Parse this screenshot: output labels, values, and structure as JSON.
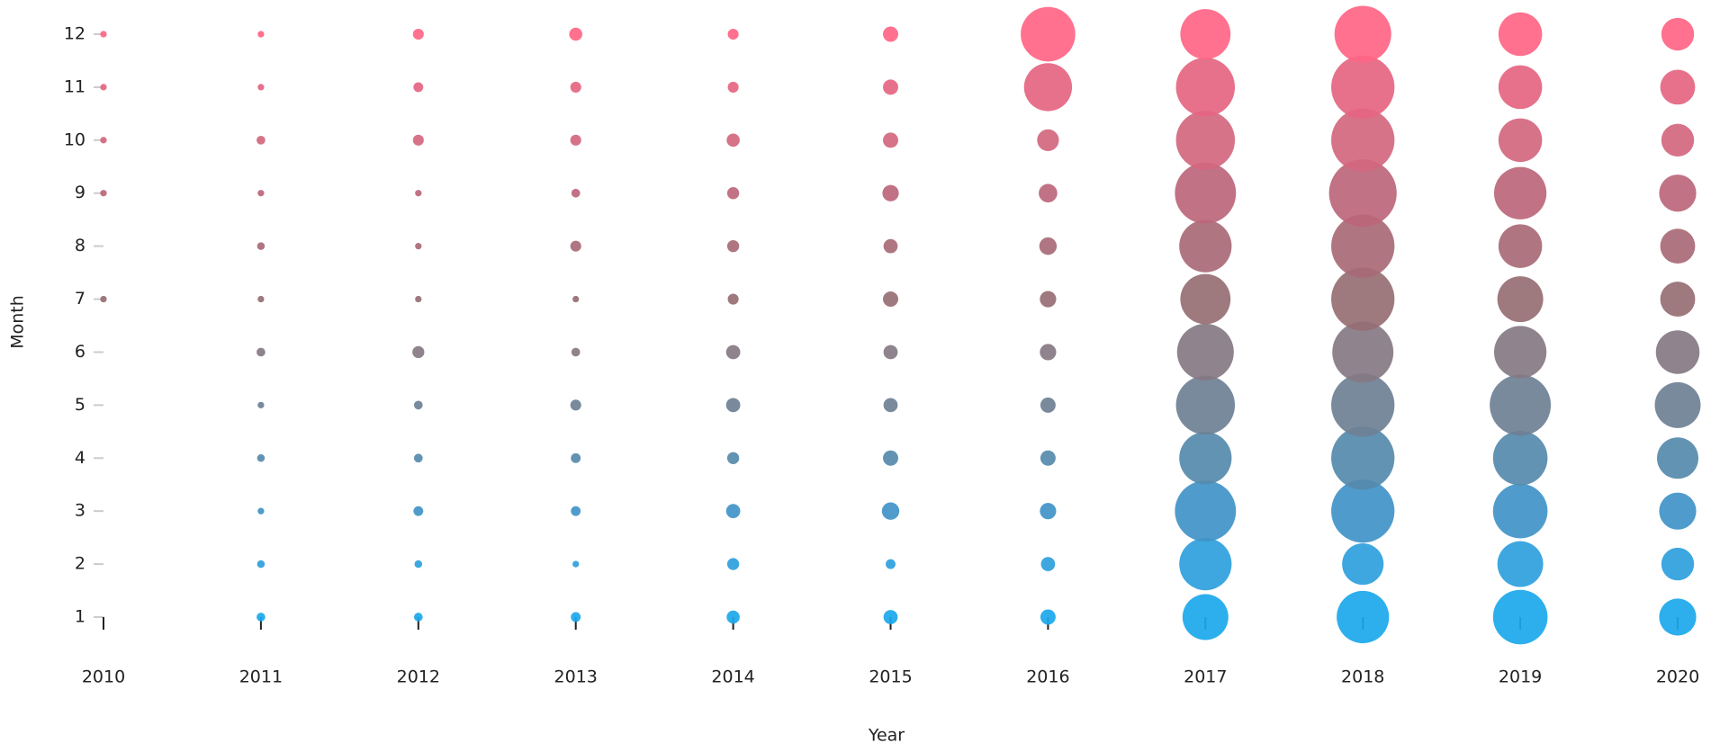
{
  "chart_data": {
    "type": "bubble",
    "x_label": "Year",
    "y_label": "Month",
    "x": [
      2010,
      2011,
      2012,
      2013,
      2014,
      2015,
      2016,
      2017,
      2018,
      2019,
      2020
    ],
    "xlim": [
      2010,
      2020
    ],
    "xticks": [
      2010,
      2011,
      2012,
      2013,
      2014,
      2015,
      2016,
      2017,
      2018,
      2019,
      2020
    ],
    "ylim": [
      1,
      12
    ],
    "yticks": [
      1,
      2,
      3,
      4,
      5,
      6,
      7,
      8,
      9,
      10,
      11,
      12
    ],
    "series": [
      {
        "y": 1,
        "color": "#1ba8ec",
        "sizes": [
          0,
          4,
          4,
          4.5,
          6,
          6.5,
          7,
          21,
          24,
          25,
          17
        ]
      },
      {
        "y": 2,
        "color": "#2e9fdc",
        "sizes": [
          0,
          3.5,
          3.5,
          3,
          5.5,
          4.5,
          6.5,
          24,
          19,
          21,
          15
        ]
      },
      {
        "y": 3,
        "color": "#4094c8",
        "sizes": [
          0,
          3,
          4.5,
          4.5,
          6.5,
          8,
          7.5,
          28,
          29,
          25,
          17
        ]
      },
      {
        "y": 4,
        "color": "#568aab",
        "sizes": [
          0,
          3.5,
          4,
          4.5,
          5.5,
          7,
          7,
          24,
          29,
          25,
          19
        ]
      },
      {
        "y": 5,
        "color": "#6e8095",
        "sizes": [
          0,
          3,
          4,
          5,
          6.5,
          6.5,
          7,
          27,
          29,
          28,
          21
        ]
      },
      {
        "y": 6,
        "color": "#857883",
        "sizes": [
          0,
          4,
          5.5,
          4,
          6.5,
          6.5,
          7.5,
          26,
          28,
          24,
          20
        ]
      },
      {
        "y": 7,
        "color": "#966e73",
        "sizes": [
          3,
          3,
          3,
          3,
          5,
          7,
          7.5,
          23,
          29,
          21,
          16
        ]
      },
      {
        "y": 8,
        "color": "#a86a76",
        "sizes": [
          0,
          3.5,
          3,
          5,
          5.5,
          6.5,
          8,
          24,
          29,
          20,
          16
        ]
      },
      {
        "y": 9,
        "color": "#bc6679",
        "sizes": [
          3,
          3,
          3,
          4,
          5.5,
          7.5,
          8.5,
          28,
          31,
          24,
          17
        ]
      },
      {
        "y": 10,
        "color": "#d2677f",
        "sizes": [
          3,
          4,
          5,
          5,
          6,
          7,
          10,
          27,
          29,
          20,
          15
        ]
      },
      {
        "y": 11,
        "color": "#e56581",
        "sizes": [
          3,
          3,
          4.5,
          5,
          5,
          7,
          22,
          27,
          29,
          20,
          16
        ]
      },
      {
        "y": 12,
        "color": "#ff6584",
        "sizes": [
          3,
          3,
          5,
          6,
          5,
          7,
          25,
          23,
          26,
          20,
          15
        ]
      }
    ]
  }
}
